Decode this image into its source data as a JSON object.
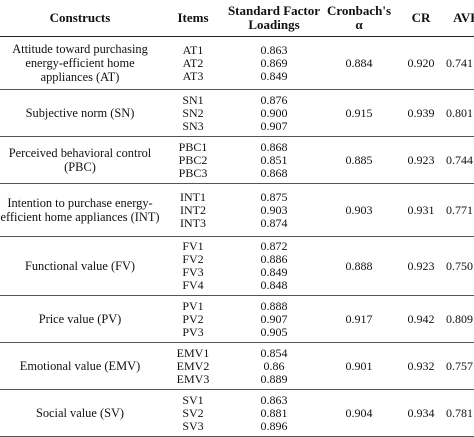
{
  "headers": {
    "constructs": "Constructs",
    "items": "Items",
    "loadings": "Standard Factor Loadings",
    "alpha": "Cronbach's α",
    "cr": "CR",
    "ave": "AVE"
  },
  "groups": [
    {
      "name": "Attitude toward purchasing energy-efficient home appliances (AT)",
      "items": [
        "AT1",
        "AT2",
        "AT3"
      ],
      "loadings": [
        "0.863",
        "0.869",
        "0.849"
      ],
      "alpha": "0.884",
      "cr": "0.920",
      "ave": "0.741"
    },
    {
      "name": "Subjective norm (SN)",
      "items": [
        "SN1",
        "SN2",
        "SN3"
      ],
      "loadings": [
        "0.876",
        "0.900",
        "0.907"
      ],
      "alpha": "0.915",
      "cr": "0.939",
      "ave": "0.801"
    },
    {
      "name": "Perceived behavioral control (PBC)",
      "items": [
        "PBC1",
        "PBC2",
        "PBC3"
      ],
      "loadings": [
        "0.868",
        "0.851",
        "0.868"
      ],
      "alpha": "0.885",
      "cr": "0.923",
      "ave": "0.744"
    },
    {
      "name": "Intention to purchase energy-efficient home appliances (INT)",
      "items": [
        "INT1",
        "INT2",
        "INT3"
      ],
      "loadings": [
        "0.875",
        "0.903",
        "0.874"
      ],
      "alpha": "0.903",
      "cr": "0.931",
      "ave": "0.771"
    },
    {
      "name": "Functional value (FV)",
      "items": [
        "FV1",
        "FV2",
        "FV3",
        "FV4"
      ],
      "loadings": [
        "0.872",
        "0.886",
        "0.849",
        "0.848"
      ],
      "alpha": "0.888",
      "cr": "0.923",
      "ave": "0.750"
    },
    {
      "name": "Price value (PV)",
      "items": [
        "PV1",
        "PV2",
        "PV3"
      ],
      "loadings": [
        "0.888",
        "0.907",
        "0.905"
      ],
      "alpha": "0.917",
      "cr": "0.942",
      "ave": "0.809"
    },
    {
      "name": "Emotional value (EMV)",
      "items": [
        "EMV1",
        "EMV2",
        "EMV3"
      ],
      "loadings": [
        "0.854",
        "0.86",
        "0.889"
      ],
      "alpha": "0.901",
      "cr": "0.932",
      "ave": "0.757"
    },
    {
      "name": "Social value (SV)",
      "items": [
        "SV1",
        "SV2",
        "SV3"
      ],
      "loadings": [
        "0.863",
        "0.881",
        "0.896"
      ],
      "alpha": "0.904",
      "cr": "0.934",
      "ave": "0.781"
    }
  ]
}
